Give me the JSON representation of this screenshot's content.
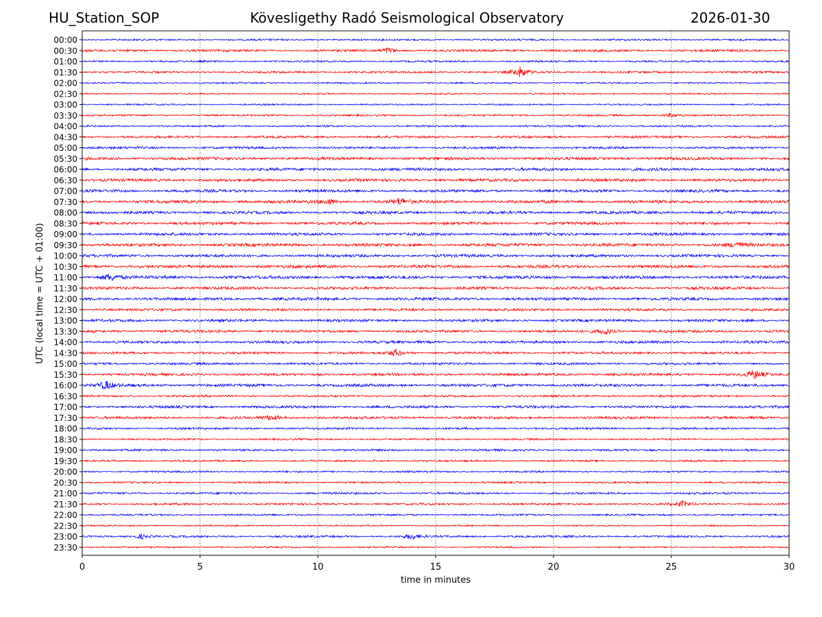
{
  "header": {
    "station": "HU_Station_SOP",
    "title": "Kövesligethy Radó Seismological Observatory",
    "date": "2026-01-30"
  },
  "chart_data": {
    "type": "line",
    "title": "Kövesligethy Radó Seismological Observatory",
    "xlabel": "time in minutes",
    "ylabel": "UTC (local time = UTC + 01:00)",
    "xlim": [
      0,
      30
    ],
    "xticks": [
      0,
      5,
      10,
      15,
      20,
      25,
      30
    ],
    "grid": "vertical dotted at x ticks",
    "rows": [
      "00:00",
      "00:30",
      "01:00",
      "01:30",
      "02:00",
      "02:30",
      "03:00",
      "03:30",
      "04:00",
      "04:30",
      "05:00",
      "05:30",
      "06:00",
      "06:30",
      "07:00",
      "07:30",
      "08:00",
      "08:30",
      "09:00",
      "09:30",
      "10:00",
      "10:30",
      "11:00",
      "11:30",
      "12:00",
      "12:30",
      "13:00",
      "13:30",
      "14:00",
      "14:30",
      "15:00",
      "15:30",
      "16:00",
      "16:30",
      "17:00",
      "17:30",
      "18:00",
      "18:30",
      "19:00",
      "19:30",
      "20:00",
      "20:30",
      "21:00",
      "21:30",
      "22:00",
      "22:30",
      "23:00",
      "23:30"
    ],
    "row_colors": [
      "#0000ff",
      "#ff0000"
    ],
    "row_amplitude": [
      0.35,
      0.45,
      0.35,
      0.4,
      0.3,
      0.3,
      0.3,
      0.35,
      0.35,
      0.45,
      0.45,
      0.55,
      0.55,
      0.55,
      0.55,
      0.6,
      0.55,
      0.55,
      0.55,
      0.6,
      0.55,
      0.6,
      0.6,
      0.55,
      0.55,
      0.5,
      0.5,
      0.5,
      0.5,
      0.45,
      0.45,
      0.5,
      0.55,
      0.4,
      0.5,
      0.5,
      0.4,
      0.35,
      0.4,
      0.35,
      0.35,
      0.35,
      0.4,
      0.4,
      0.35,
      0.3,
      0.4,
      0.3
    ],
    "events": [
      {
        "row": "00:30",
        "minute": 13.0,
        "amplitude": 1.0
      },
      {
        "row": "01:30",
        "minute": 18.6,
        "amplitude": 2.0
      },
      {
        "row": "03:30",
        "minute": 25.0,
        "amplitude": 0.8
      },
      {
        "row": "07:30",
        "minute": 13.5,
        "amplitude": 1.2
      },
      {
        "row": "07:30",
        "minute": 10.5,
        "amplitude": 0.9
      },
      {
        "row": "09:30",
        "minute": 27.8,
        "amplitude": 1.0
      },
      {
        "row": "11:00",
        "minute": 1.2,
        "amplitude": 1.3
      },
      {
        "row": "13:30",
        "minute": 22.2,
        "amplitude": 1.2
      },
      {
        "row": "14:30",
        "minute": 13.3,
        "amplitude": 1.3
      },
      {
        "row": "15:30",
        "minute": 28.5,
        "amplitude": 1.6
      },
      {
        "row": "16:00",
        "minute": 1.0,
        "amplitude": 1.5
      },
      {
        "row": "17:30",
        "minute": 8.0,
        "amplitude": 0.9
      },
      {
        "row": "21:30",
        "minute": 25.5,
        "amplitude": 1.0
      },
      {
        "row": "23:00",
        "minute": 14.0,
        "amplitude": 1.0
      },
      {
        "row": "23:00",
        "minute": 2.5,
        "amplitude": 0.8
      }
    ]
  }
}
